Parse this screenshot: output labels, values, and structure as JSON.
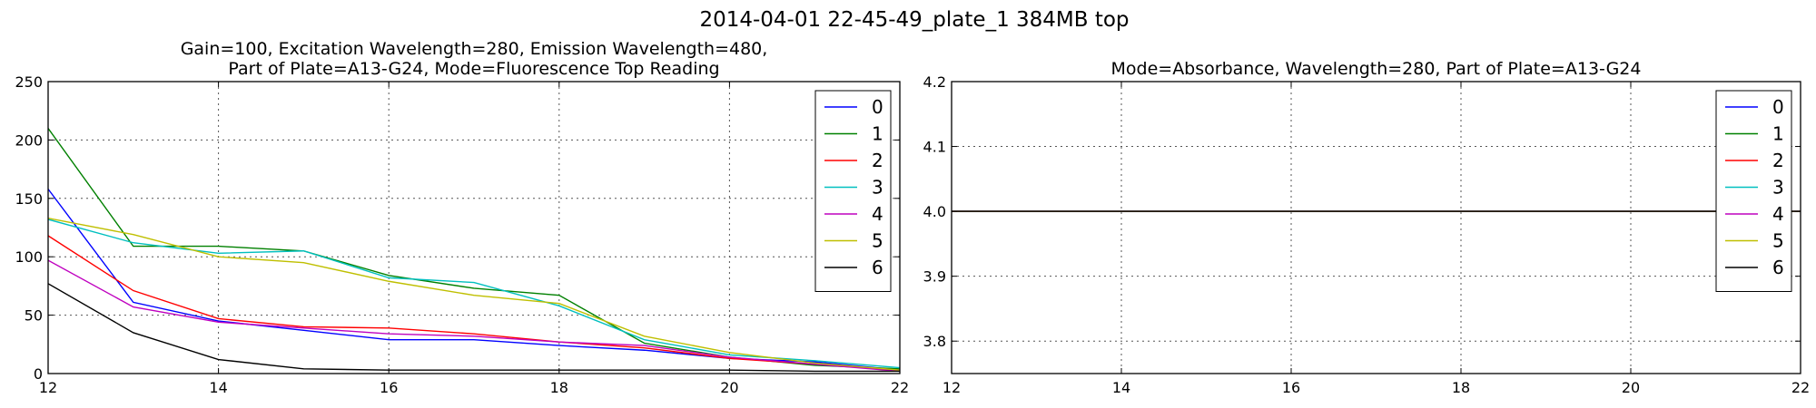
{
  "figure": {
    "suptitle": "2014-04-01 22-45-49_plate_1 384MB top"
  },
  "chart_data": [
    {
      "type": "line",
      "title_lines": [
        "Gain=100, Excitation Wavelength=280, Emission Wavelength=480,",
        "Part of Plate=A13-G24, Mode=Fluorescence Top Reading"
      ],
      "xlabel": "",
      "ylabel": "",
      "xlim": [
        12,
        22
      ],
      "ylim": [
        0,
        250
      ],
      "xticks": [
        12,
        14,
        16,
        18,
        20,
        22
      ],
      "yticks": [
        0,
        50,
        100,
        150,
        200,
        250
      ],
      "grid": true,
      "legend": "top-right",
      "x": [
        12,
        13,
        14,
        15,
        16,
        17,
        18,
        19,
        20,
        21,
        22
      ],
      "series": [
        {
          "name": "0",
          "color": "#0000ff",
          "values": [
            158,
            61,
            45,
            37,
            29,
            29,
            24,
            20,
            13,
            10,
            3
          ]
        },
        {
          "name": "1",
          "color": "#008000",
          "values": [
            210,
            109,
            109,
            105,
            84,
            73,
            67,
            26,
            14,
            7,
            4
          ]
        },
        {
          "name": "2",
          "color": "#ff0000",
          "values": [
            118,
            71,
            47,
            40,
            39,
            34,
            27,
            22,
            13,
            8,
            3
          ]
        },
        {
          "name": "3",
          "color": "#00bfbf",
          "values": [
            132,
            112,
            103,
            105,
            82,
            78,
            58,
            29,
            16,
            11,
            5
          ]
        },
        {
          "name": "4",
          "color": "#bf00bf",
          "values": [
            97,
            57,
            44,
            39,
            34,
            32,
            27,
            24,
            14,
            8,
            2
          ]
        },
        {
          "name": "5",
          "color": "#bfbf00",
          "values": [
            133,
            119,
            100,
            95,
            79,
            67,
            60,
            32,
            18,
            9,
            3
          ]
        },
        {
          "name": "6",
          "color": "#000000",
          "values": [
            77,
            35,
            12,
            4,
            3,
            3,
            3,
            3,
            3,
            2,
            2
          ]
        }
      ]
    },
    {
      "type": "line",
      "title_lines": [
        "Mode=Absorbance, Wavelength=280, Part of Plate=A13-G24"
      ],
      "xlabel": "",
      "ylabel": "",
      "xlim": [
        12,
        22
      ],
      "ylim": [
        3.75,
        4.2
      ],
      "xticks": [
        12,
        14,
        16,
        18,
        20,
        22
      ],
      "yticks": [
        3.8,
        3.9,
        4.0,
        4.1,
        4.2
      ],
      "grid": true,
      "legend": "top-right",
      "x": [
        12,
        13,
        14,
        15,
        16,
        17,
        18,
        19,
        20,
        21,
        22
      ],
      "series": [
        {
          "name": "0",
          "color": "#0000ff",
          "values": [
            4,
            4,
            4,
            4,
            4,
            4,
            4,
            4,
            4,
            4,
            4
          ]
        },
        {
          "name": "1",
          "color": "#008000",
          "values": [
            4,
            4,
            4,
            4,
            4,
            4,
            4,
            4,
            4,
            4,
            4
          ]
        },
        {
          "name": "2",
          "color": "#ff0000",
          "values": [
            4,
            4,
            4,
            4,
            4,
            4,
            4,
            4,
            4,
            4,
            4
          ]
        },
        {
          "name": "3",
          "color": "#00bfbf",
          "values": [
            4,
            4,
            4,
            4,
            4,
            4,
            4,
            4,
            4,
            4,
            4
          ]
        },
        {
          "name": "4",
          "color": "#bf00bf",
          "values": [
            4,
            4,
            4,
            4,
            4,
            4,
            4,
            4,
            4,
            4,
            4
          ]
        },
        {
          "name": "5",
          "color": "#bfbf00",
          "values": [
            4,
            4,
            4,
            4,
            4,
            4,
            4,
            4,
            4,
            4,
            4
          ]
        },
        {
          "name": "6",
          "color": "#000000",
          "values": [
            4,
            4,
            4,
            4,
            4,
            4,
            4,
            4,
            4,
            4,
            4
          ]
        }
      ]
    }
  ]
}
